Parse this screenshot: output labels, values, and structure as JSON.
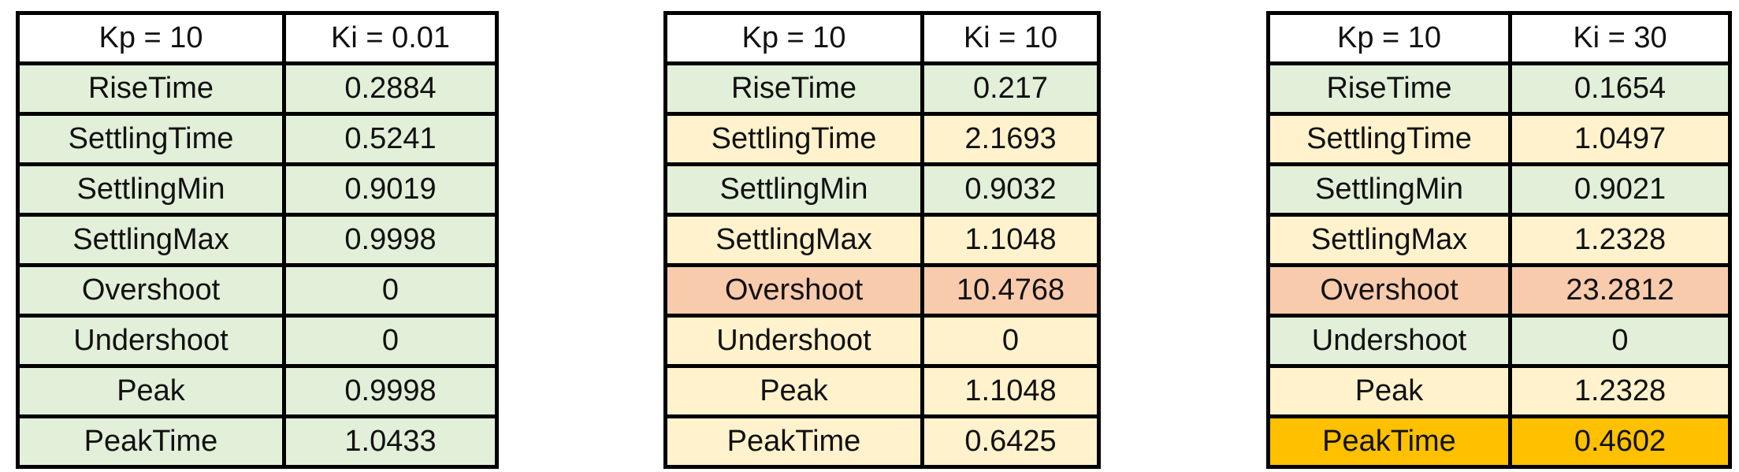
{
  "colors": {
    "green": "#e2efd9",
    "yellow": "#fff2cc",
    "salmon": "#f8cbad",
    "orange": "#ffc000"
  },
  "tables": [
    {
      "header": [
        "Kp = 10",
        "Ki = 0.01"
      ],
      "rows": [
        {
          "metric": "RiseTime",
          "value": "0.2884",
          "color": "green"
        },
        {
          "metric": "SettlingTime",
          "value": "0.5241",
          "color": "green"
        },
        {
          "metric": "SettlingMin",
          "value": "0.9019",
          "color": "green"
        },
        {
          "metric": "SettlingMax",
          "value": "0.9998",
          "color": "green"
        },
        {
          "metric": "Overshoot",
          "value": "0",
          "color": "green"
        },
        {
          "metric": "Undershoot",
          "value": "0",
          "color": "green"
        },
        {
          "metric": "Peak",
          "value": "0.9998",
          "color": "green"
        },
        {
          "metric": "PeakTime",
          "value": "1.0433",
          "color": "green"
        }
      ]
    },
    {
      "header": [
        "Kp = 10",
        "Ki = 10"
      ],
      "rows": [
        {
          "metric": "RiseTime",
          "value": "0.217",
          "color": "green"
        },
        {
          "metric": "SettlingTime",
          "value": "2.1693",
          "color": "yellow"
        },
        {
          "metric": "SettlingMin",
          "value": "0.9032",
          "color": "green"
        },
        {
          "metric": "SettlingMax",
          "value": "1.1048",
          "color": "yellow"
        },
        {
          "metric": "Overshoot",
          "value": "10.4768",
          "color": "salmon"
        },
        {
          "metric": "Undershoot",
          "value": "0",
          "color": "yellow"
        },
        {
          "metric": "Peak",
          "value": "1.1048",
          "color": "yellow"
        },
        {
          "metric": "PeakTime",
          "value": "0.6425",
          "color": "yellow"
        }
      ]
    },
    {
      "header": [
        "Kp = 10",
        "Ki = 30"
      ],
      "rows": [
        {
          "metric": "RiseTime",
          "value": "0.1654",
          "color": "green"
        },
        {
          "metric": "SettlingTime",
          "value": "1.0497",
          "color": "yellow"
        },
        {
          "metric": "SettlingMin",
          "value": "0.9021",
          "color": "green"
        },
        {
          "metric": "SettlingMax",
          "value": "1.2328",
          "color": "yellow"
        },
        {
          "metric": "Overshoot",
          "value": "23.2812",
          "color": "salmon"
        },
        {
          "metric": "Undershoot",
          "value": "0",
          "color": "green"
        },
        {
          "metric": "Peak",
          "value": "1.2328",
          "color": "yellow"
        },
        {
          "metric": "PeakTime",
          "value": "0.4602",
          "color": "orange"
        }
      ]
    }
  ]
}
